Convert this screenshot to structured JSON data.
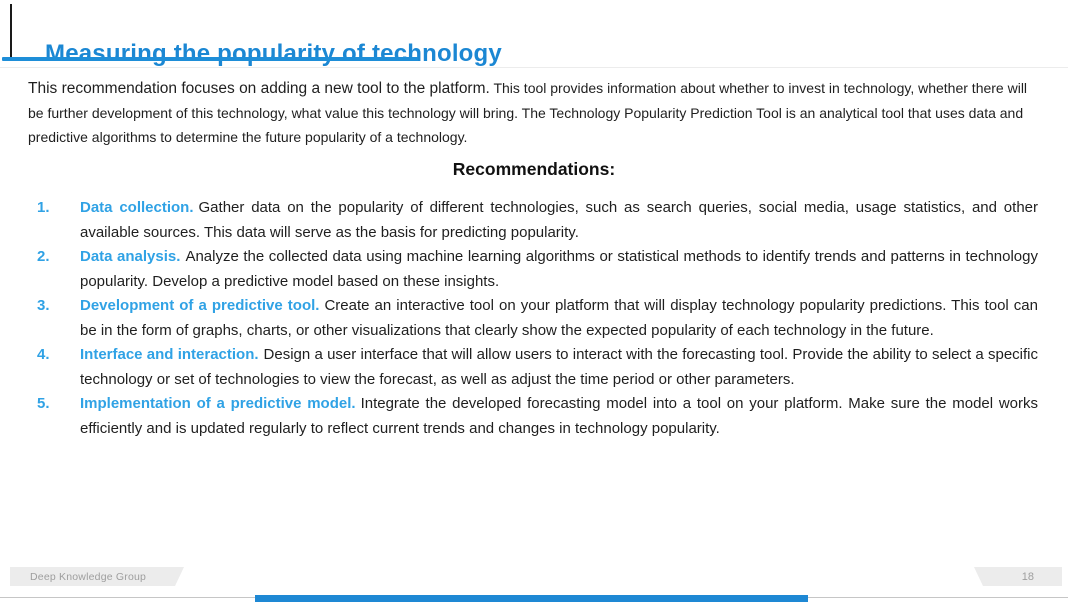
{
  "slide": {
    "title": "Measuring the popularity of technology",
    "intro": {
      "lead": "This recommendation focuses on adding a new tool to the platform.",
      "rest": " This tool provides information about whether to invest in technology, whether there will be further development of this technology, what value this technology will bring. The Technology Popularity Prediction Tool is an analytical tool that uses data and predictive algorithms to determine the future popularity of a technology."
    },
    "recommendations_heading": "Recommendations:",
    "items": [
      {
        "number": "1.",
        "lead": "Data collection.",
        "body": "Gather data on the popularity of different technologies, such as search queries, social media, usage statistics, and other available sources. This data will serve as the basis for predicting popularity."
      },
      {
        "number": "2.",
        "lead": "Data analysis.",
        "body": "Analyze the collected data using machine learning algorithms or statistical methods to identify trends and patterns in technology popularity. Develop a predictive model based on these insights."
      },
      {
        "number": "3.",
        "lead": "Development of a predictive tool.",
        "body": "Create an interactive tool on your platform that will display technology popularity predictions. This tool can be in the form of graphs, charts, or other visualizations that clearly show the expected popularity of each technology in the future."
      },
      {
        "number": "4.",
        "lead": "Interface and interaction.",
        "body": "Design a user interface that will allow users to interact with the forecasting tool. Provide the ability to select a specific technology or set of technologies to view the forecast, as well as adjust the time period or other parameters."
      },
      {
        "number": "5.",
        "lead": "Implementation of a predictive model.",
        "body": "Integrate the developed forecasting model into a tool on your platform. Make sure the model works efficiently and is updated regularly to reflect current trends and changes in technology popularity."
      }
    ],
    "footer": {
      "company": "Deep Knowledge Group",
      "page_number": "18"
    },
    "colors": {
      "title_blue": "#1b87d3",
      "accent_blue": "#30a2e5",
      "footer_gray": "#ececec",
      "footer_text": "#9e9e9e",
      "bottom_bar_blue": "#1e88d4"
    }
  }
}
